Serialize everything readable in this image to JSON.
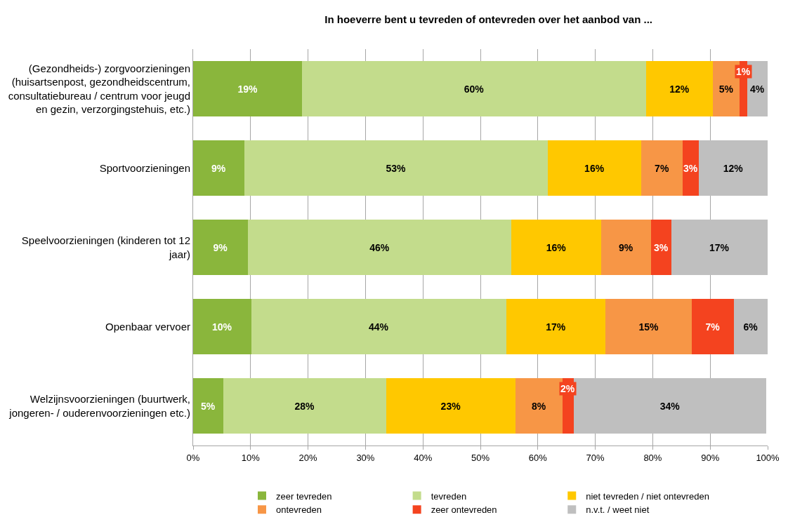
{
  "chart_data": {
    "type": "bar",
    "orientation": "horizontal",
    "stacked": true,
    "title": "In hoeverre bent u tevreden of ontevreden over het aanbod van ...",
    "categories": [
      "(Gezondheids-) zorgvoorzieningen (huisartsenpost, gezondheidscentrum, consultatiebureau / centrum voor jeugd en gezin, verzorgingstehuis, etc.)",
      "Sportvoorzieningen",
      "Speelvoorzieningen (kinderen tot 12 jaar)",
      "Openbaar vervoer",
      "Welzijnsvoorzieningen (buurtwerk, jongeren- / ouderenvoorzieningen etc.)"
    ],
    "series": [
      {
        "name": "zeer tevreden",
        "color": "#8ab63c",
        "values": [
          19.0,
          8.9,
          9.5,
          10.1,
          5.2
        ],
        "value_labels": [
          "19%",
          "9%",
          "9%",
          "10%",
          "5%"
        ]
      },
      {
        "name": "tevreden",
        "color": "#c3dc8c",
        "values": [
          59.8,
          52.8,
          45.9,
          44.4,
          28.4
        ],
        "value_labels": [
          "60%",
          "53%",
          "46%",
          "44%",
          "28%"
        ]
      },
      {
        "name": "niet tevreden / niet ontevreden",
        "color": "#ffc800",
        "values": [
          11.7,
          16.3,
          15.6,
          17.3,
          22.5
        ],
        "value_labels": [
          "12%",
          "16%",
          "16%",
          "17%",
          "23%"
        ]
      },
      {
        "name": "ontevreden",
        "color": "#f79646",
        "values": [
          4.6,
          7.2,
          8.7,
          15.0,
          8.2
        ],
        "value_labels": [
          "5%",
          "7%",
          "9%",
          "15%",
          "8%"
        ]
      },
      {
        "name": "zeer ontevreden",
        "color": "#f4431f",
        "values": [
          1.3,
          2.8,
          3.5,
          7.3,
          1.9
        ],
        "value_labels": [
          "1%",
          "3%",
          "3%",
          "7%",
          "2%"
        ]
      },
      {
        "name": "n.v.t. / weet niet",
        "color": "#bfbfbf",
        "values": [
          3.6,
          12.0,
          16.8,
          5.9,
          33.6
        ],
        "value_labels": [
          "4%",
          "12%",
          "17%",
          "6%",
          "34%"
        ]
      }
    ],
    "xlim": [
      0,
      100
    ],
    "xticks": [
      {
        "value": 0,
        "label": "0%"
      },
      {
        "value": 10,
        "label": "10%"
      },
      {
        "value": 20,
        "label": "20%"
      },
      {
        "value": 30,
        "label": "30%"
      },
      {
        "value": 40,
        "label": "40%"
      },
      {
        "value": 50,
        "label": "50%"
      },
      {
        "value": 60,
        "label": "60%"
      },
      {
        "value": 70,
        "label": "70%"
      },
      {
        "value": 80,
        "label": "80%"
      },
      {
        "value": 90,
        "label": "90%"
      },
      {
        "value": 100,
        "label": "100%"
      }
    ],
    "grid": "x",
    "legend": "bottom"
  }
}
